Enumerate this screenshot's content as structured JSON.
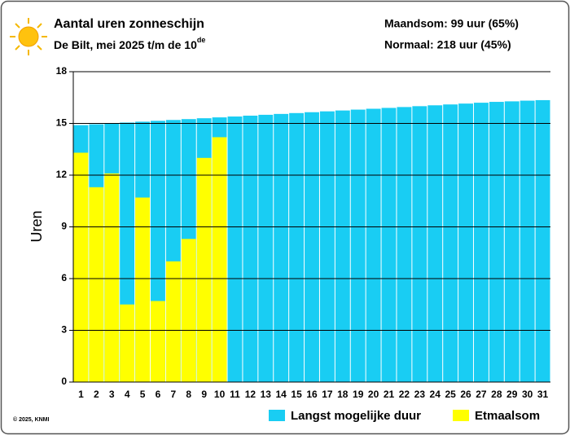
{
  "chart_data": {
    "type": "bar",
    "title": "Aantal uren zonneschijn",
    "subtitle": "De Bilt, mei 2025 t/m de 10",
    "subtitle_sup": "de",
    "annotations": [
      "Maandsom: 99 uur (65%)",
      "Normaal: 218 uur (45%)"
    ],
    "credit": "© 2025, KNMI",
    "y_label": "Uren",
    "categories": [
      "1",
      "2",
      "3",
      "4",
      "5",
      "6",
      "7",
      "8",
      "9",
      "10",
      "11",
      "12",
      "13",
      "14",
      "15",
      "16",
      "17",
      "18",
      "19",
      "20",
      "21",
      "22",
      "23",
      "24",
      "25",
      "26",
      "27",
      "28",
      "29",
      "30",
      "31"
    ],
    "series": [
      {
        "name": "Langst mogelijke duur",
        "color": "#19cdf3",
        "values": [
          14.9,
          14.95,
          15.0,
          15.05,
          15.1,
          15.15,
          15.2,
          15.25,
          15.3,
          15.35,
          15.4,
          15.45,
          15.5,
          15.55,
          15.6,
          15.65,
          15.7,
          15.75,
          15.8,
          15.85,
          15.9,
          15.95,
          16.0,
          16.05,
          16.1,
          16.15,
          16.2,
          16.25,
          16.28,
          16.32,
          16.35
        ]
      },
      {
        "name": "Etmaalsom",
        "color": "#ffff00",
        "values": [
          13.3,
          11.3,
          12.1,
          4.5,
          10.7,
          4.7,
          7.0,
          8.3,
          13.0,
          14.2,
          null,
          null,
          null,
          null,
          null,
          null,
          null,
          null,
          null,
          null,
          null,
          null,
          null,
          null,
          null,
          null,
          null,
          null,
          null,
          null,
          null
        ]
      }
    ],
    "ylim": [
      0,
      18
    ],
    "yticks": [
      0,
      3,
      6,
      9,
      12,
      15,
      18
    ],
    "grid": true
  }
}
